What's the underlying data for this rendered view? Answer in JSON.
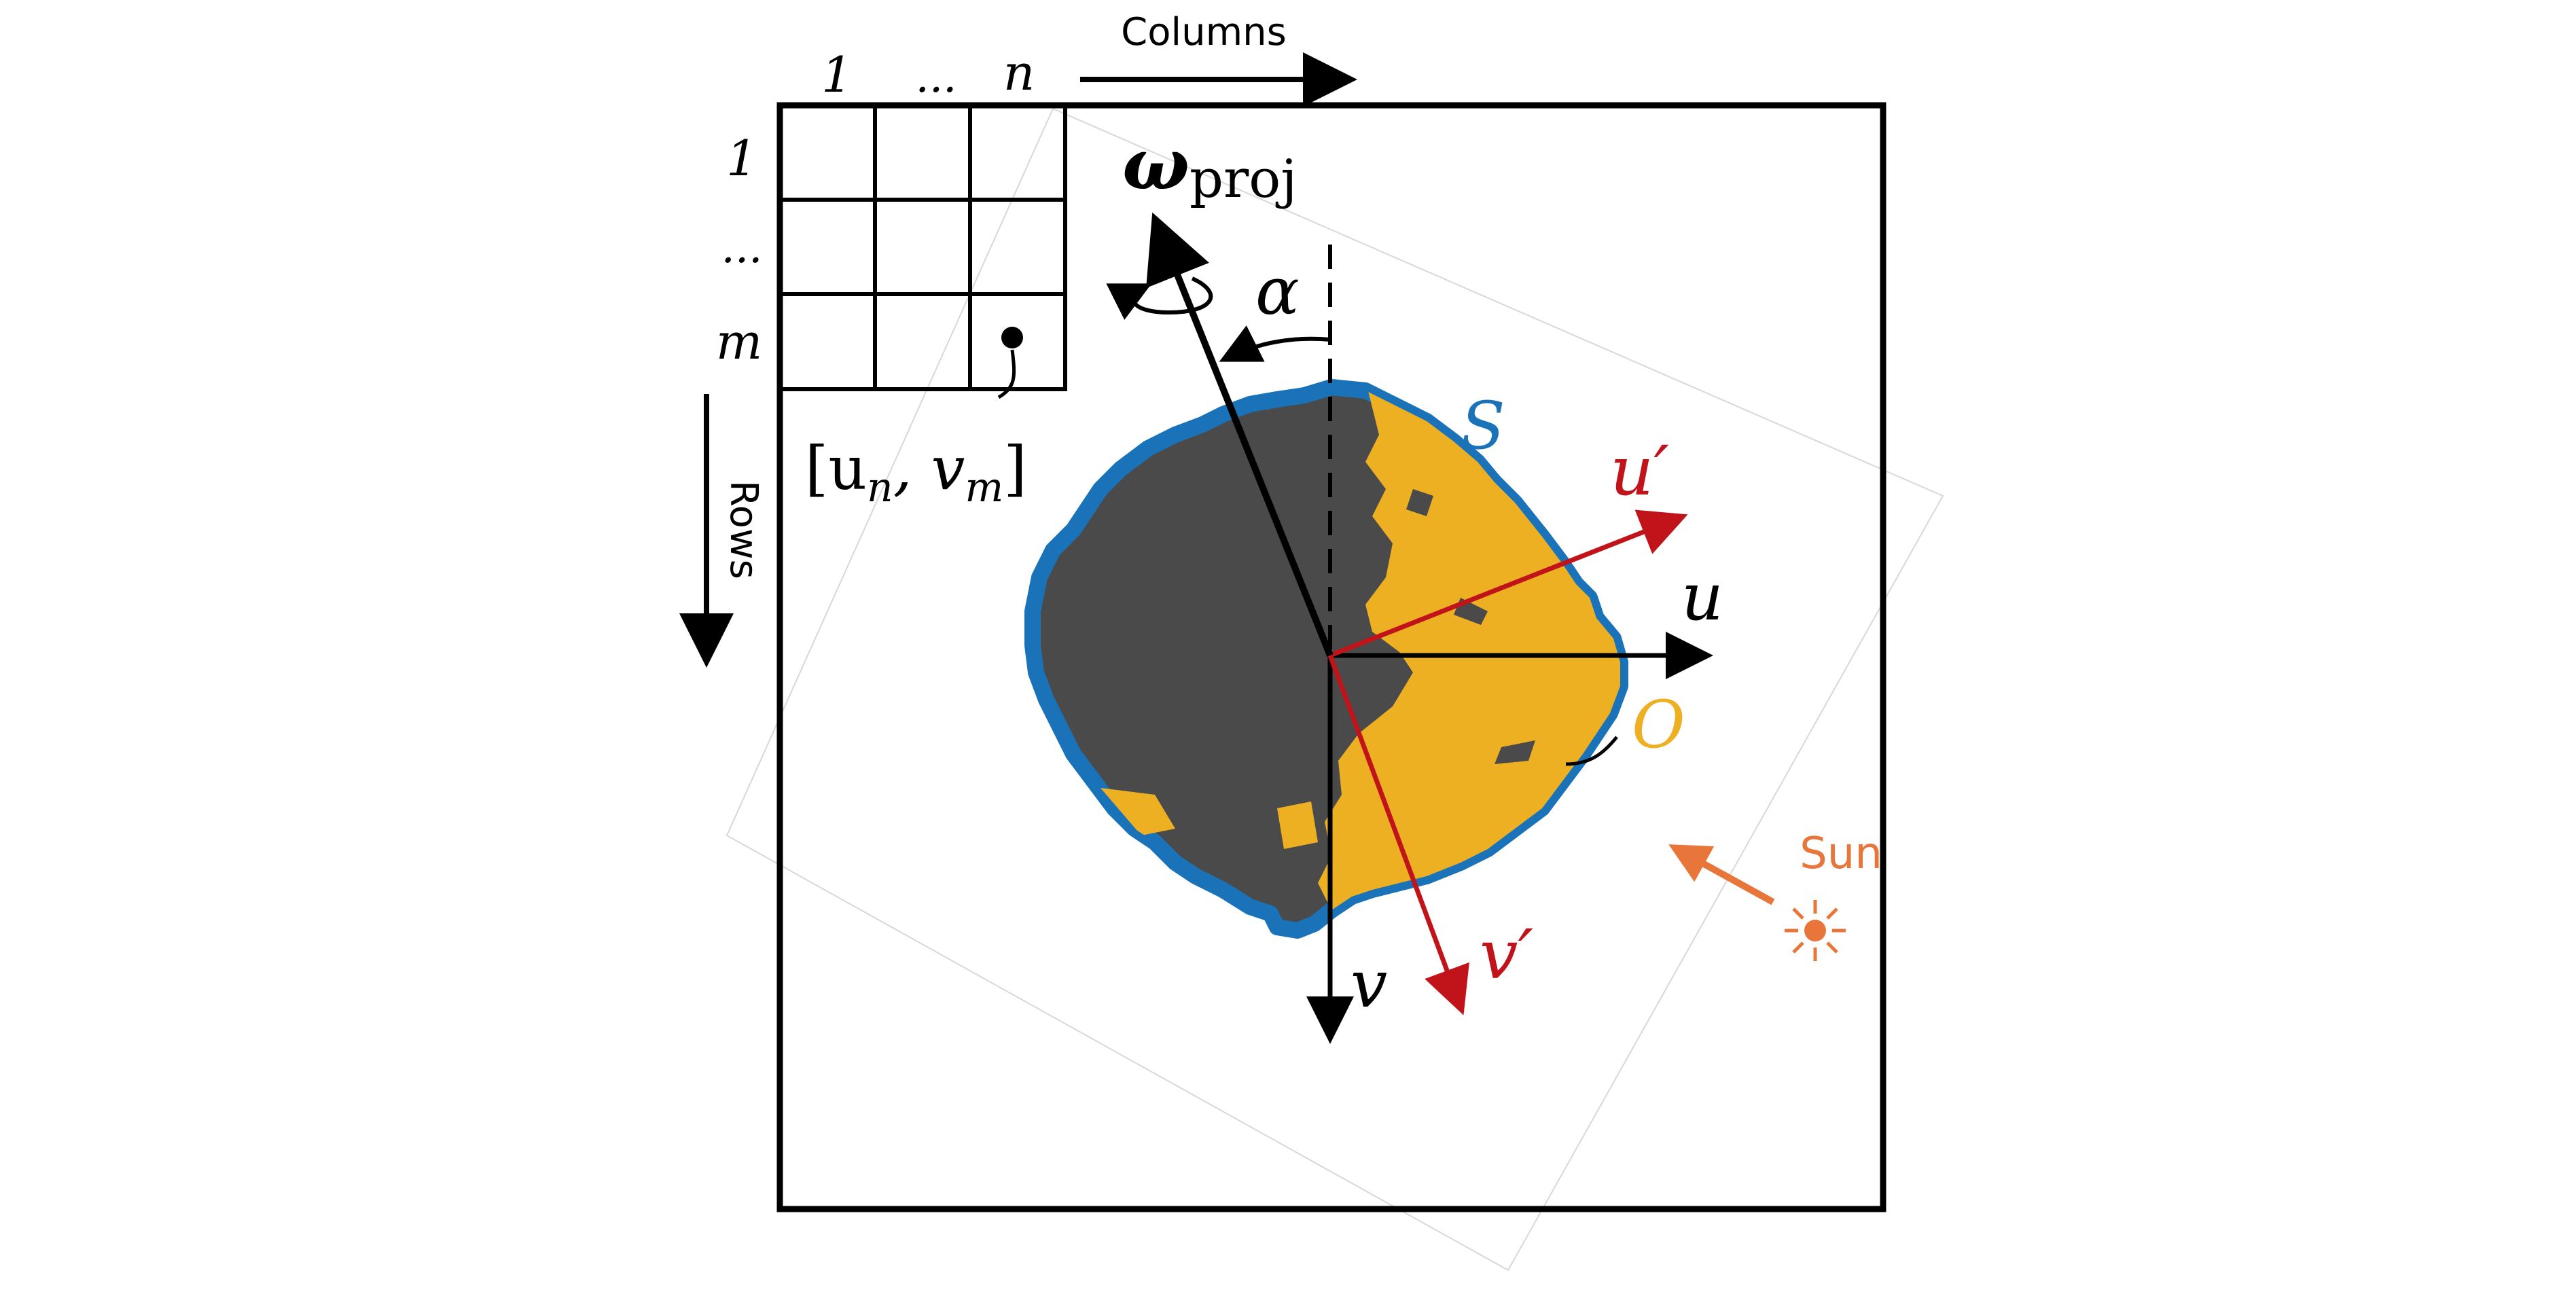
{
  "labels": {
    "columns": "Columns",
    "rows": "Rows",
    "col_first": "1",
    "col_dots": "...",
    "col_last": "n",
    "row_first": "1",
    "row_dots": "...",
    "row_last": "m",
    "pixel": "[u",
    "pixel_n": "n",
    "pixel_mid": ", v",
    "pixel_m": "m",
    "pixel_close": "]",
    "omega": "ω",
    "omega_sub": "proj",
    "alpha": "α",
    "u": "u",
    "v": "v",
    "u_prime": "u′",
    "v_prime": "v′",
    "S": "S",
    "O": "O",
    "sun": "Sun"
  },
  "colors": {
    "frame": "#000000",
    "body_dark": "#4a4a4a",
    "body_lit": "#eeb023",
    "outline": "#1a73b8",
    "prime_axes": "#c0141a",
    "sun": "#e8763a",
    "tilted_frame": "#d8d8d8"
  }
}
